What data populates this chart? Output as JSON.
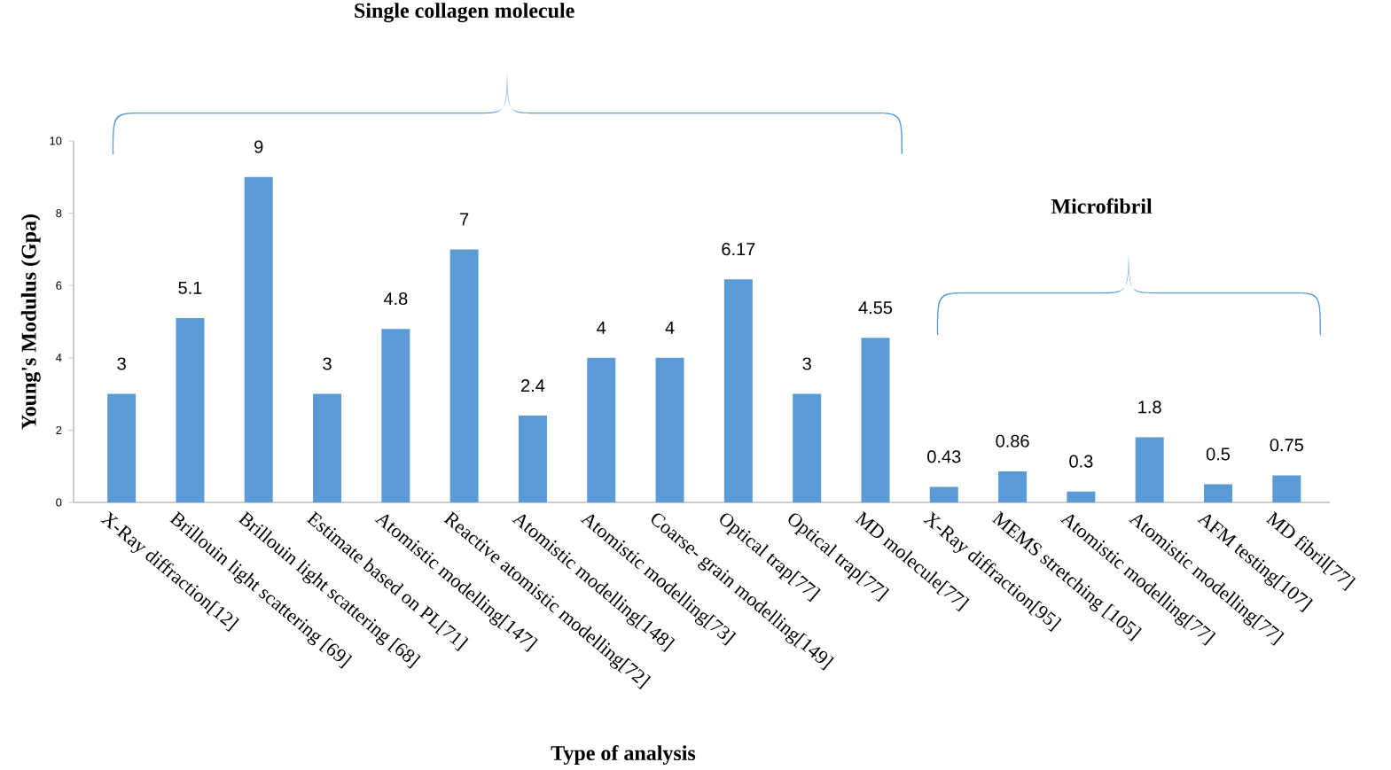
{
  "chart_data": {
    "type": "bar",
    "xlabel": "Type of analysis",
    "ylabel": "Young's Modulus (Gpa)",
    "categories": [
      "X-Ray diffraction[12]",
      "Brillouin light scattering [69]",
      "Brillouin light scattering [68]",
      "Estimate based on PL[71]",
      "Atomistic modelling[147]",
      "Reactive atomistic modelling[72]",
      "Atomistic modelling[148]",
      "Atomistic modelling[73]",
      "Coarse- grain modelling[149]",
      "Optical trap[77]",
      "Optical trap[77]",
      "MD molecule[77]",
      "X-Ray diffraction[95]",
      "MEMS stretching [105]",
      "Atomistic modelling[77]",
      "Atomistic modelling[77]",
      "AFM testing[107]",
      "MD fibril[77]"
    ],
    "values": [
      3,
      5.1,
      9,
      3,
      4.8,
      7,
      2.4,
      4,
      4,
      6.17,
      3,
      4.55,
      0.43,
      0.86,
      0.3,
      1.8,
      0.5,
      0.75
    ],
    "color": "#5b9bd5",
    "ylim": [
      0,
      10
    ],
    "yticks": [
      0,
      2,
      4,
      6,
      8,
      10
    ],
    "data_labels": true,
    "grid": false,
    "annotations": [
      "Single collagen molecule",
      "Microfibril"
    ]
  }
}
